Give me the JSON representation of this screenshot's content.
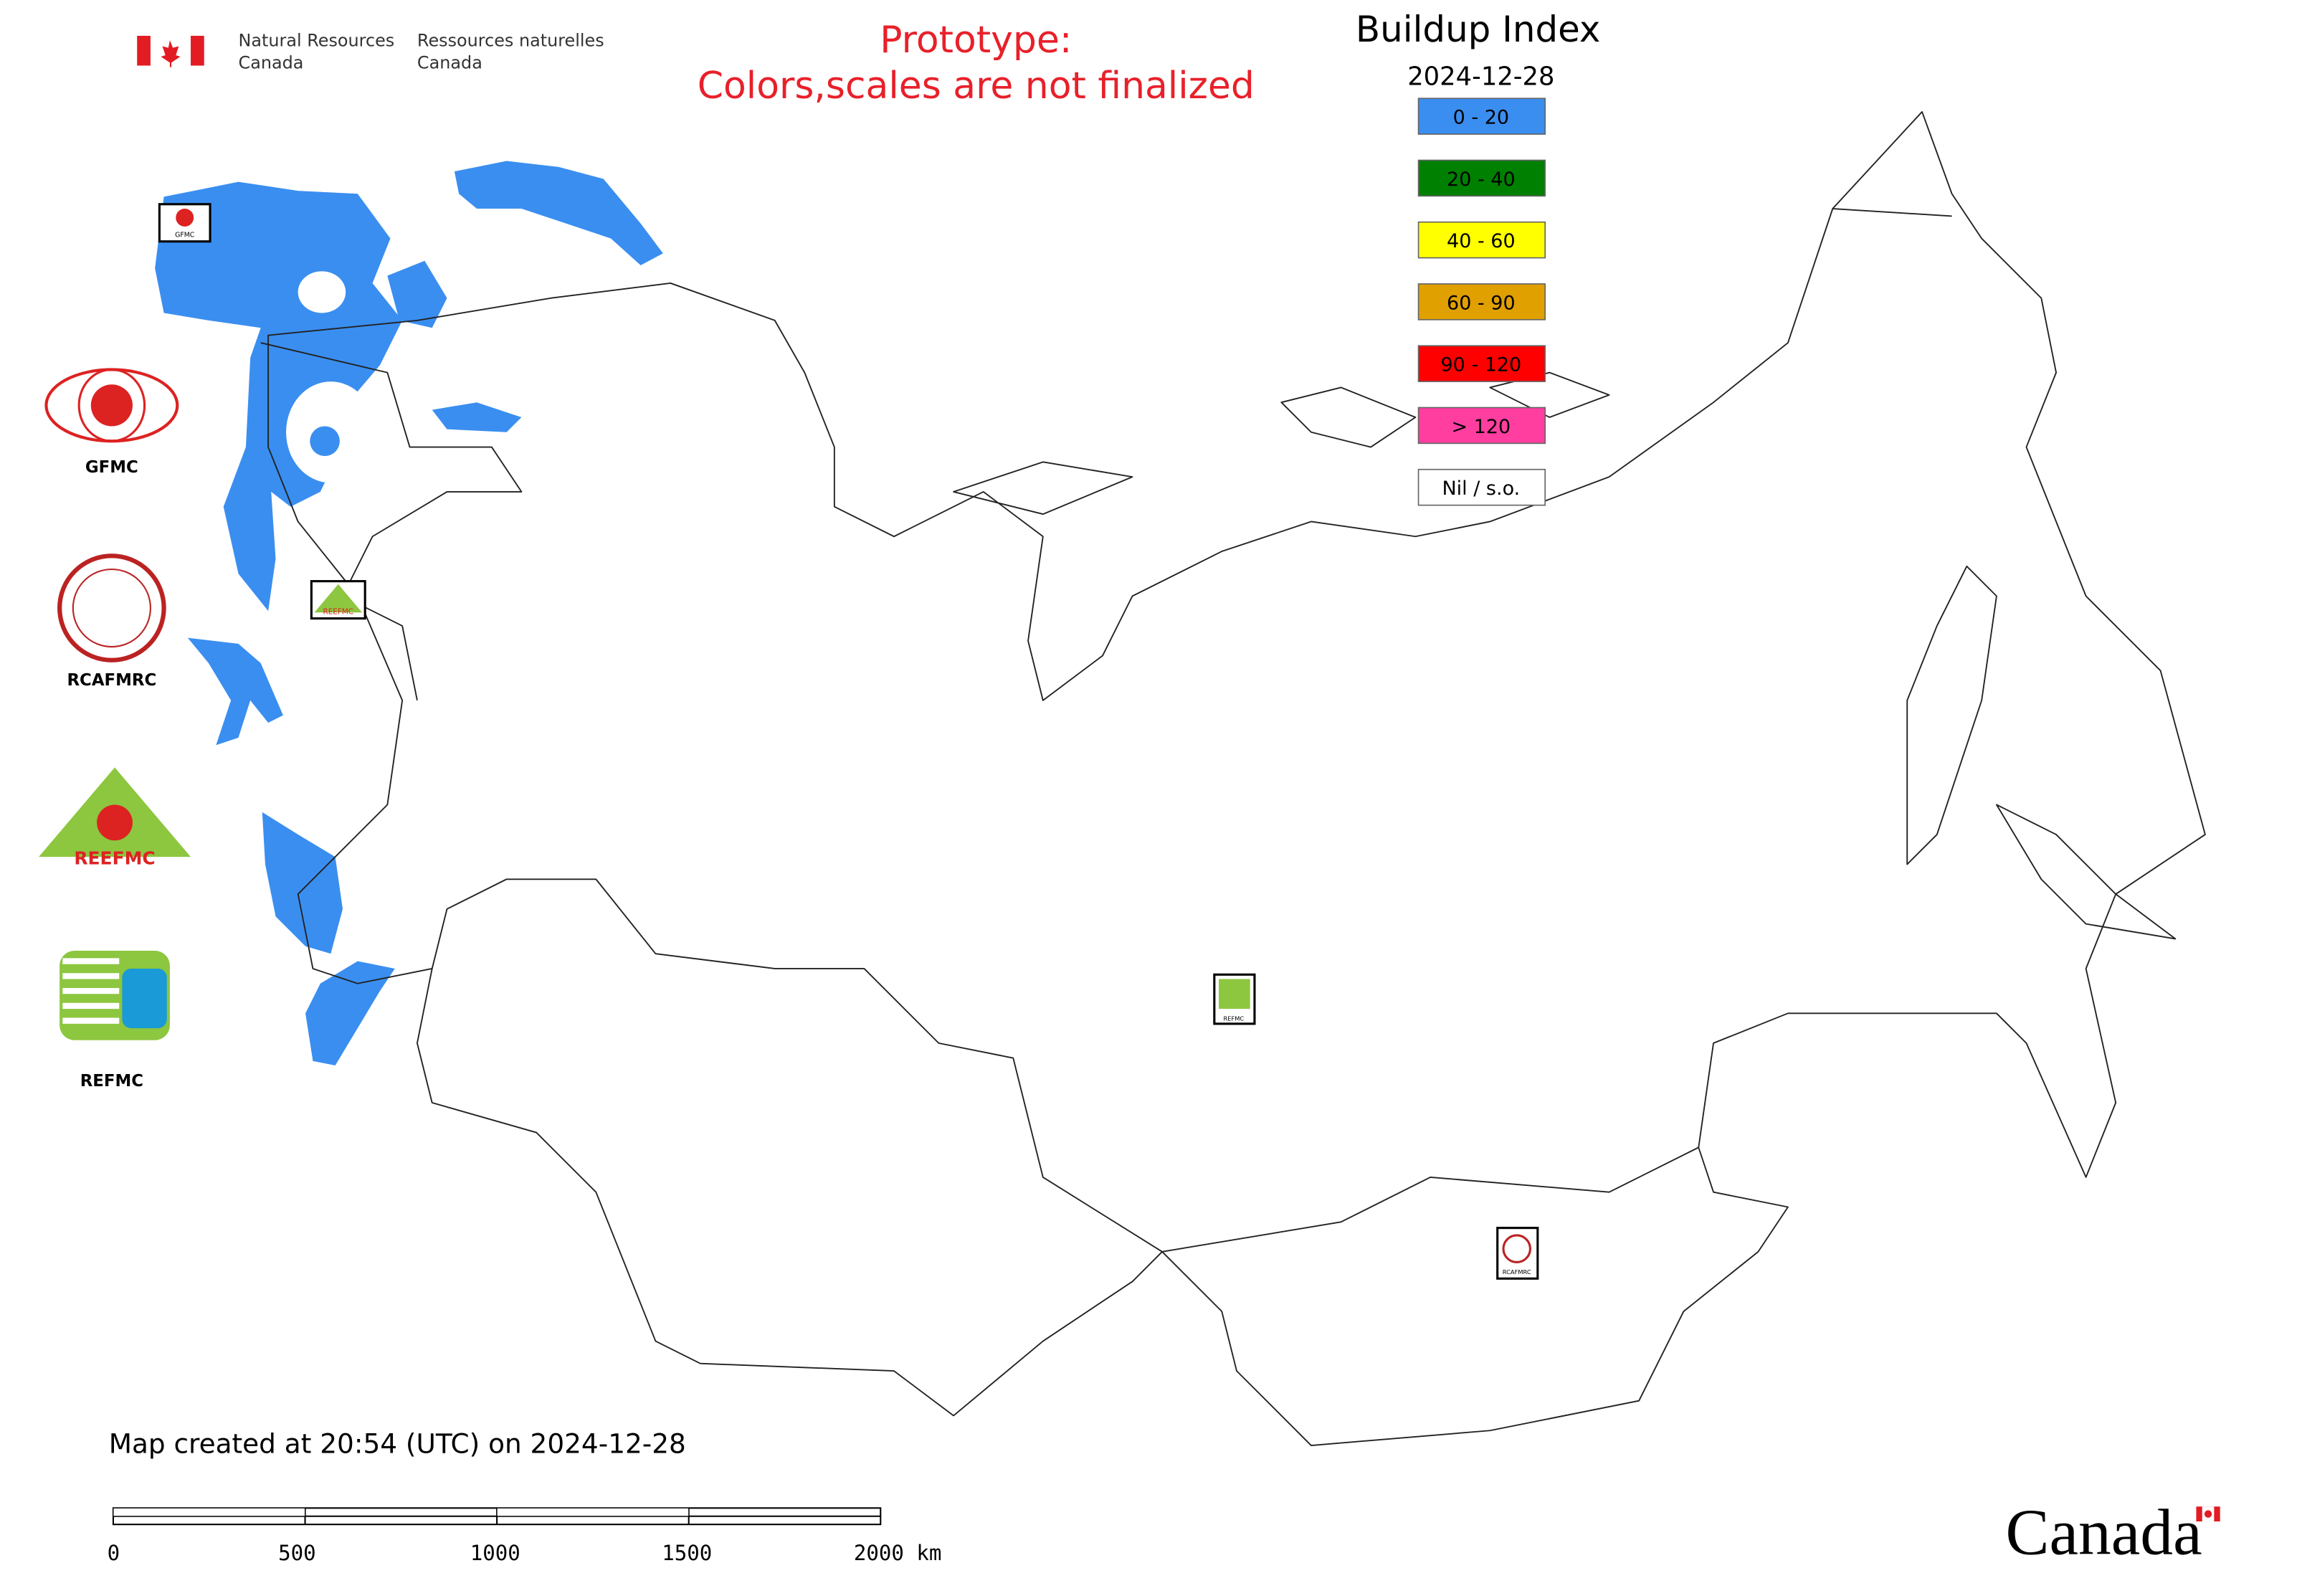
{
  "header": {
    "org_en_line1": "Natural Resources",
    "org_en_line2": "Canada",
    "org_fr_line1": "Ressources naturelles",
    "org_fr_line2": "Canada"
  },
  "notice": {
    "line1": "Prototype:",
    "line2": "Colors,scales are not finalized"
  },
  "legend": {
    "title": "Buildup Index",
    "date": "2024-12-28",
    "items": [
      {
        "label": "0 - 20",
        "color": "#3a8ef0"
      },
      {
        "label": "20 - 40",
        "color": "#008000"
      },
      {
        "label": "40 - 60",
        "color": "#ffff00"
      },
      {
        "label": "60 - 90",
        "color": "#e0a000"
      },
      {
        "label": "90 - 120",
        "color": "#ff0000"
      },
      {
        "label": "> 120",
        "color": "#ff3ea0"
      },
      {
        "label": "Nil / s.o.",
        "color": "#ffffff"
      }
    ]
  },
  "logos": [
    "GFMC",
    "RCAFMRC",
    "REEFMC",
    "REFMC"
  ],
  "map_markers": [
    "GFMC",
    "REEFMC",
    "REFMC",
    "RCAFMRC"
  ],
  "footer": {
    "created": "Map created at 20:54 (UTC) on 2024-12-28",
    "scale_labels": [
      "0",
      "500",
      "1000",
      "1500",
      "2000 km"
    ],
    "wordmark": "Canada"
  }
}
